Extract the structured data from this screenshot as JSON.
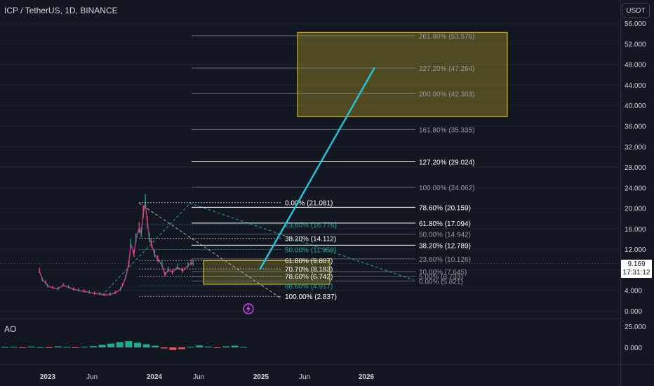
{
  "header": {
    "symbol": "ICP / TetherUS, 1D, BINANCE",
    "currency_button": "USDT"
  },
  "last_price": {
    "value": "9.169",
    "countdown": "17:31:12"
  },
  "indicator": {
    "name": "AO",
    "axis_ticks": [
      "25.000",
      "0.000"
    ]
  },
  "y_axis_ticks": [
    "56.000",
    "52.000",
    "48.000",
    "44.000",
    "40.000",
    "36.000",
    "32.000",
    "28.000",
    "24.000",
    "20.000",
    "16.000",
    "12.000",
    "8.000",
    "4.000",
    "0.000"
  ],
  "x_axis_ticks": [
    "2023",
    "Jun",
    "2024",
    "Jun",
    "2025",
    "Jun",
    "2026"
  ],
  "colors": {
    "background": "#131722",
    "candle_up": "#22ab94",
    "candle_down": "#f7525f",
    "projection": "#26c6da",
    "target_box": "#f2d024",
    "fib_white": "#ffffff",
    "fib_gray": "#9598a1",
    "fib_teal": "#26a69a"
  },
  "fib_retracement": [
    {
      "label": "0.00% (21.081)",
      "value": 21.081,
      "color": "white"
    },
    {
      "label": "23.60% (16.776)",
      "value": 16.776,
      "color": "teal"
    },
    {
      "label": "38.20% (14.112)",
      "value": 14.112,
      "color": "white"
    },
    {
      "label": "50.00% (11.959)",
      "value": 11.959,
      "color": "teal"
    },
    {
      "label": "61.80% (9.807)",
      "value": 9.807,
      "color": "white"
    },
    {
      "label": "70.70% (8.183)",
      "value": 8.183,
      "color": "white"
    },
    {
      "label": "78.60% (6.742)",
      "value": 6.742,
      "color": "white"
    },
    {
      "label": "88.60% (4.917)",
      "value": 4.917,
      "color": "teal"
    },
    {
      "label": "100.00% (2.837)",
      "value": 2.837,
      "color": "white"
    }
  ],
  "fib_extension": [
    {
      "label": "261.80% (53.576)",
      "value": 53.576,
      "color": "gray"
    },
    {
      "label": "227.20% (47.264)",
      "value": 47.264,
      "color": "gray"
    },
    {
      "label": "200.00% (42.303)",
      "value": 42.303,
      "color": "gray"
    },
    {
      "label": "161.80% (35.335)",
      "value": 35.335,
      "color": "gray"
    },
    {
      "label": "127.20% (29.024)",
      "value": 29.024,
      "color": "white"
    },
    {
      "label": "100.00% (24.062)",
      "value": 24.062,
      "color": "gray"
    },
    {
      "label": "78.60% (20.159)",
      "value": 20.159,
      "color": "white"
    },
    {
      "label": "61.80% (17.094)",
      "value": 17.094,
      "color": "white"
    },
    {
      "label": "50.00% (14.942)",
      "value": 14.942,
      "color": "gray"
    },
    {
      "label": "38.20% (12.789)",
      "value": 12.789,
      "color": "white"
    },
    {
      "label": "23.60% (10.126)",
      "value": 10.126,
      "color": "gray"
    },
    {
      "label": "10.00% (7.645)",
      "value": 7.645,
      "color": "gray"
    },
    {
      "label": "5.00% (6.733)",
      "value": 6.733,
      "color": "gray"
    },
    {
      "label": "0.00% (5.821)",
      "value": 5.821,
      "color": "gray"
    }
  ],
  "price_path": [
    [
      -0.08,
      7.8
    ],
    [
      -0.05,
      6.0
    ],
    [
      -0.02,
      5.5
    ],
    [
      0.0,
      4.8
    ],
    [
      0.05,
      4.5
    ],
    [
      0.1,
      4.3
    ],
    [
      0.15,
      5.0
    ],
    [
      0.2,
      4.6
    ],
    [
      0.25,
      4.2
    ],
    [
      0.3,
      4.0
    ],
    [
      0.35,
      3.8
    ],
    [
      0.4,
      3.6
    ],
    [
      0.45,
      3.4
    ],
    [
      0.5,
      3.3
    ],
    [
      0.55,
      3.1
    ],
    [
      0.6,
      3.2
    ],
    [
      0.65,
      3.5
    ],
    [
      0.7,
      4.2
    ],
    [
      0.72,
      5.0
    ],
    [
      0.75,
      6.5
    ],
    [
      0.78,
      9.0
    ],
    [
      0.8,
      13.0
    ],
    [
      0.83,
      11.0
    ],
    [
      0.85,
      14.0
    ],
    [
      0.88,
      16.0
    ],
    [
      0.9,
      15.0
    ],
    [
      0.92,
      19.0
    ],
    [
      0.94,
      21.0
    ],
    [
      0.96,
      17.0
    ],
    [
      0.98,
      14.0
    ],
    [
      1.0,
      13.0
    ],
    [
      1.03,
      11.0
    ],
    [
      1.06,
      10.0
    ],
    [
      1.1,
      9.0
    ],
    [
      1.13,
      7.0
    ],
    [
      1.16,
      8.0
    ],
    [
      1.2,
      7.5
    ],
    [
      1.25,
      8.5
    ],
    [
      1.3,
      7.8
    ],
    [
      1.35,
      8.8
    ],
    [
      1.38,
      9.3
    ],
    [
      1.4,
      9.169
    ]
  ],
  "ao_series": [
    0.2,
    0.3,
    -0.2,
    0.4,
    0.1,
    -0.3,
    0.5,
    0.2,
    -0.1,
    0.3,
    0.6,
    1.2,
    1.8,
    2.5,
    3.0,
    2.2,
    1.5,
    0.8,
    -0.5,
    -1.2,
    -0.8,
    0.3,
    0.9,
    0.4,
    -0.2,
    0.5,
    0.8,
    0.2
  ]
}
